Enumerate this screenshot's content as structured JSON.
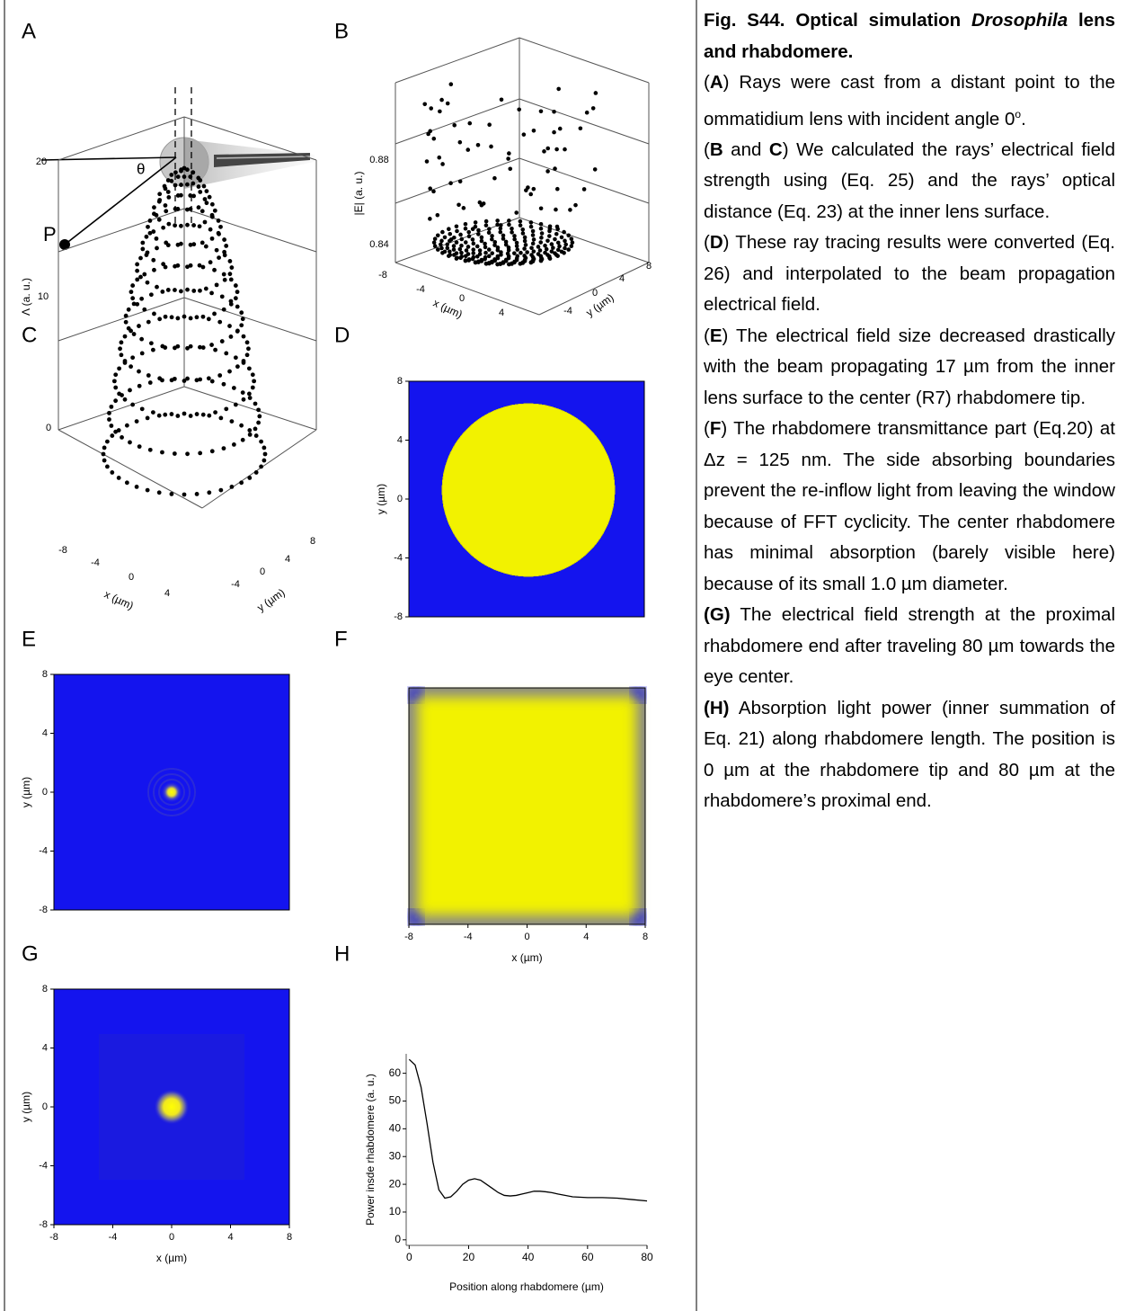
{
  "panels": {
    "A": {
      "label": "A",
      "theta": "θ",
      "point": "P"
    },
    "B": {
      "label": "B",
      "z_label": "|E| (a. u.)",
      "z_ticks": [
        "0.88",
        "0.84"
      ],
      "x_label": "x (µm)",
      "x_ticks": [
        "-8",
        "-4",
        "0",
        "4"
      ],
      "y_label": "y (µm)",
      "y_ticks": [
        "-4",
        "0",
        "4",
        "8"
      ]
    },
    "C": {
      "label": "C",
      "z_label": "Λ (a. u.)",
      "z_ticks": [
        "20",
        "10",
        "0"
      ],
      "x_label": "x (µm)",
      "x_ticks": [
        "-8",
        "-4",
        "0",
        "4"
      ],
      "y_label": "y (µm)",
      "y_ticks": [
        "-4",
        "0",
        "4",
        "8"
      ]
    },
    "D": {
      "label": "D",
      "y_label": "y (µm)",
      "ylim": [
        -8,
        8
      ],
      "yticks": [
        8,
        4,
        0,
        -4,
        -8
      ]
    },
    "E": {
      "label": "E",
      "y_label": "y (µm)",
      "ylim": [
        -8,
        8
      ],
      "yticks": [
        8,
        4,
        0,
        -4,
        -8
      ]
    },
    "F": {
      "label": "F",
      "x_label": "x (µm)",
      "xlim": [
        -8,
        8
      ],
      "xticks": [
        -8,
        -4,
        0,
        4,
        8
      ]
    },
    "G": {
      "label": "G",
      "y_label": "y (µm)",
      "ylim": [
        -8,
        8
      ],
      "yticks": [
        8,
        4,
        0,
        -4,
        -8
      ],
      "x_label": "x (µm)",
      "xlim": [
        -8,
        8
      ],
      "xticks": [
        -8,
        -4,
        0,
        4,
        8
      ]
    },
    "H": {
      "label": "H"
    }
  },
  "chart_data": {
    "type": "line",
    "x_label": "Position along rhabdomere (µm)",
    "y_label": "Power insde rhabdomere (a. u.)",
    "x": [
      0,
      2,
      4,
      6,
      8,
      10,
      12,
      14,
      16,
      18,
      20,
      22,
      24,
      26,
      28,
      30,
      32,
      34,
      36,
      38,
      40,
      42,
      44,
      46,
      48,
      50,
      55,
      60,
      65,
      70,
      75,
      80
    ],
    "values": [
      65,
      63,
      55,
      42,
      28,
      18,
      15,
      15.5,
      17.5,
      20,
      21.5,
      22,
      21.5,
      20,
      18.5,
      17,
      16,
      15.8,
      16,
      16.5,
      17,
      17.5,
      17.5,
      17.3,
      17,
      16.5,
      15.5,
      15.2,
      15.2,
      15,
      14.5,
      14
    ],
    "color": "#000000",
    "xlim": [
      -1,
      80
    ],
    "ylim": [
      -2,
      67
    ],
    "xticks": [
      0,
      20,
      40,
      60,
      80
    ],
    "yticks": [
      0,
      10,
      20,
      30,
      40,
      50,
      60
    ]
  },
  "caption": {
    "title": [
      "Fig. S44. Optical simulation ",
      "Drosophila",
      " lens and rhabdomere."
    ],
    "A": [
      "(",
      "A",
      ") Rays were cast from a distant point to the ommatidium lens with incident angle 0",
      "o",
      "."
    ],
    "BC": [
      "(",
      "B",
      " and ",
      "C",
      ") We calculated the rays’ electrical field strength using (Eq. 25) and the rays’ optical distance (Eq. 23) at the inner lens surface."
    ],
    "D": [
      "(",
      "D",
      ") These ray tracing results were converted (Eq. 26) and interpolated to the beam propagation electrical field."
    ],
    "E": [
      "(",
      "E",
      ") The electrical field size decreased drastically with the beam propagating 17 µm from the inner lens surface to the center (R7) rhabdomere tip."
    ],
    "F": [
      "(",
      "F",
      ") The rhabdomere transmittance part (Eq.20) at Δz = 125 nm. The side absorbing boundaries prevent the re-inflow light from leaving the window because of FFT cyclicity. The center rhabdomere has minimal absorption (barely visible here) because of its small 1.0 µm diameter."
    ],
    "G": [
      "(G)",
      " The electrical field strength at the proximal rhabdomere end after traveling 80 µm towards the eye center."
    ],
    "H": [
      "(H)",
      " Absorption light power (inner summation of Eq. 21) along rhabdomere length. The position is 0 µm at the rhabdomere tip and 80 µm at the rhabdomere’s proximal end."
    ]
  }
}
